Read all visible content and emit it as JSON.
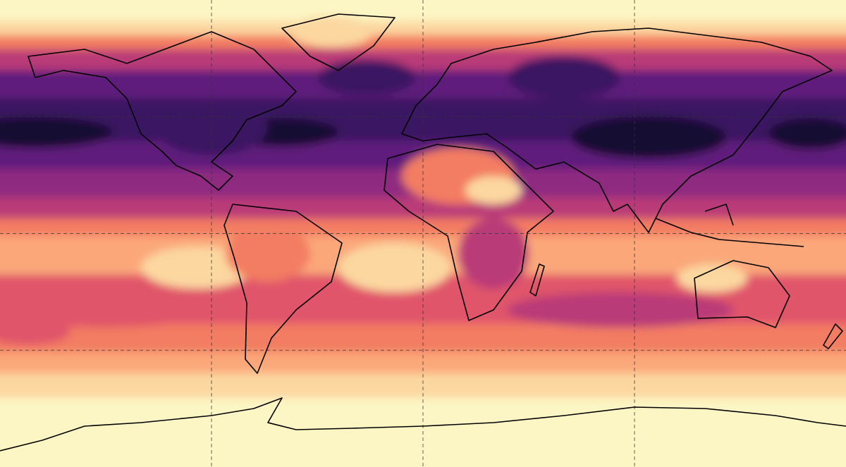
{
  "map": {
    "projection": "equirectangular",
    "colormap": [
      "#fcf6c4",
      "#fcd7a0",
      "#fba77a",
      "#f37d62",
      "#e0546a",
      "#b93a78",
      "#8e2a80",
      "#5e1d7c",
      "#3a1262",
      "#150a30"
    ],
    "gridlines": {
      "longitudes": [
        -90,
        0,
        90
      ],
      "latitudes": [
        45,
        0,
        -45
      ]
    }
  }
}
